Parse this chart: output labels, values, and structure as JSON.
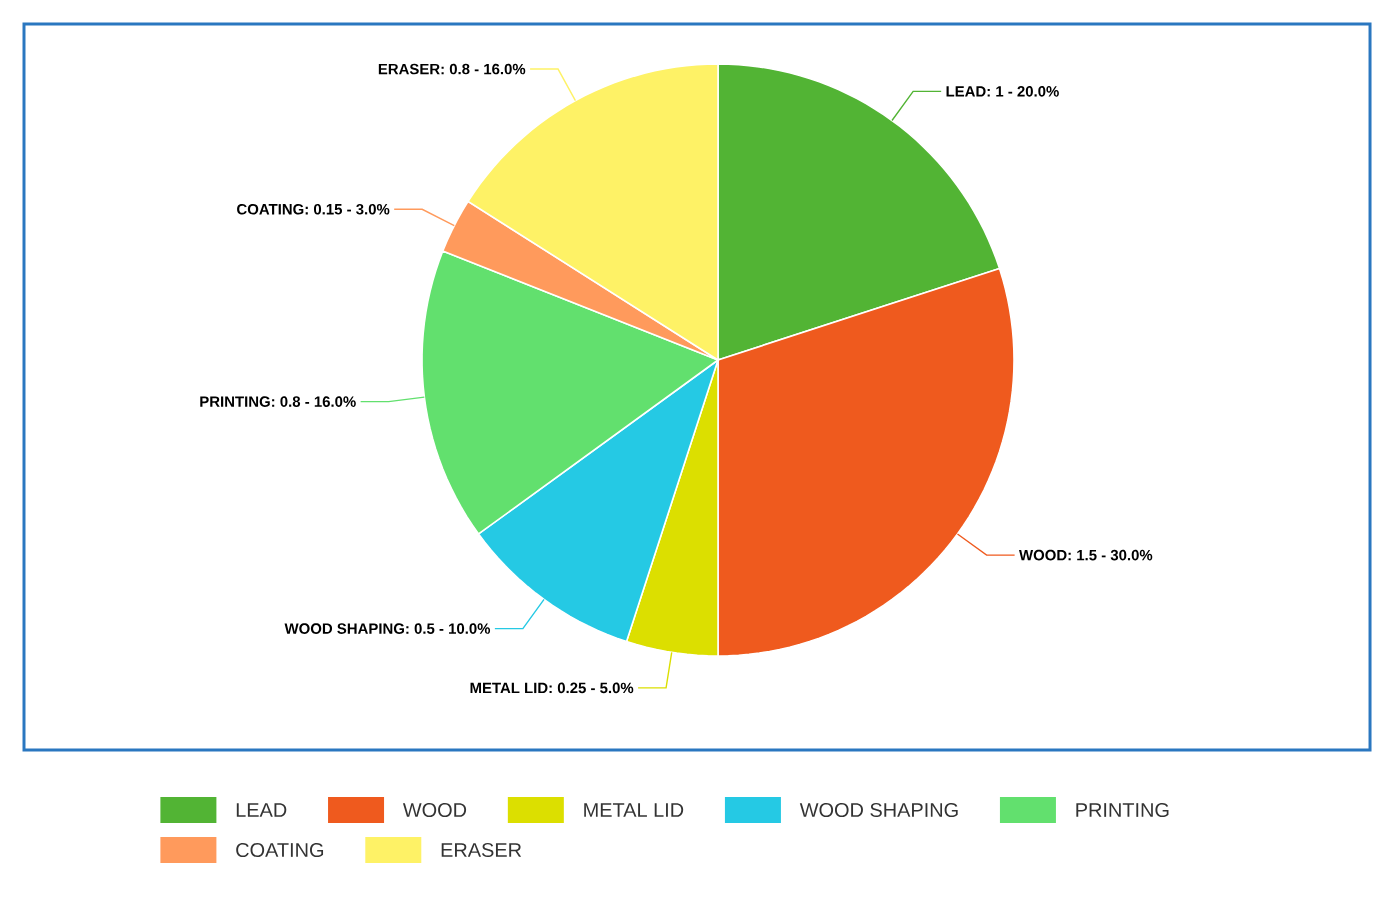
{
  "chart_data": {
    "type": "pie",
    "categories": [
      "LEAD",
      "WOOD",
      "METAL LID",
      "WOOD SHAPING",
      "PRINTING",
      "COATING",
      "ERASER"
    ],
    "values": [
      1,
      1.5,
      0.25,
      0.5,
      0.8,
      0.15,
      0.8
    ],
    "colors": [
      "#52b434",
      "#ef5a1e",
      "#dcdf00",
      "#25c9e4",
      "#62e06e",
      "#ff9a5c",
      "#fef266"
    ],
    "value_labels": [
      "LEAD: 1 - 20.0%",
      "WOOD: 1.5 - 30.0%",
      "METAL LID: 0.25 - 5.0%",
      "WOOD SHAPING: 0.5 - 10.0%",
      "PRINTING: 0.8 - 16.0%",
      "COATING: 0.15 - 3.0%",
      "ERASER: 0.8 - 16.0%"
    ],
    "legend": "bottom"
  }
}
